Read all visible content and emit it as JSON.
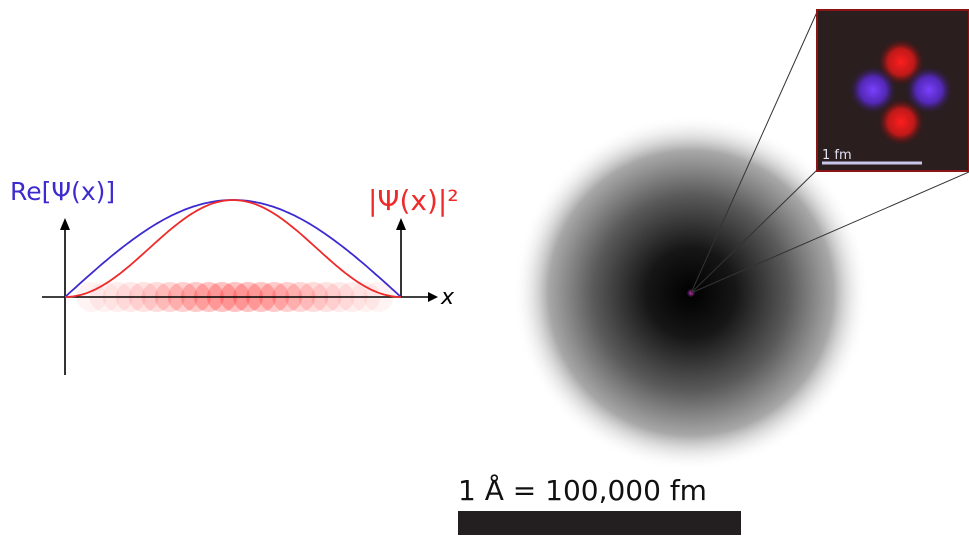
{
  "wavefunction": {
    "re_label": "Re[Ψ(x)]",
    "prob_label": "|Ψ(x)|²",
    "x_axis_label": "x"
  },
  "atom": {
    "inset_scale_label": "1 fm"
  },
  "scale": {
    "label": "1 Å = 100,000 fm"
  },
  "colors": {
    "re_curve": "#3d2bd0",
    "prob_curve": "#ee2a2a",
    "inset_border": "#8b1414",
    "scale_bar": "#231f20"
  }
}
